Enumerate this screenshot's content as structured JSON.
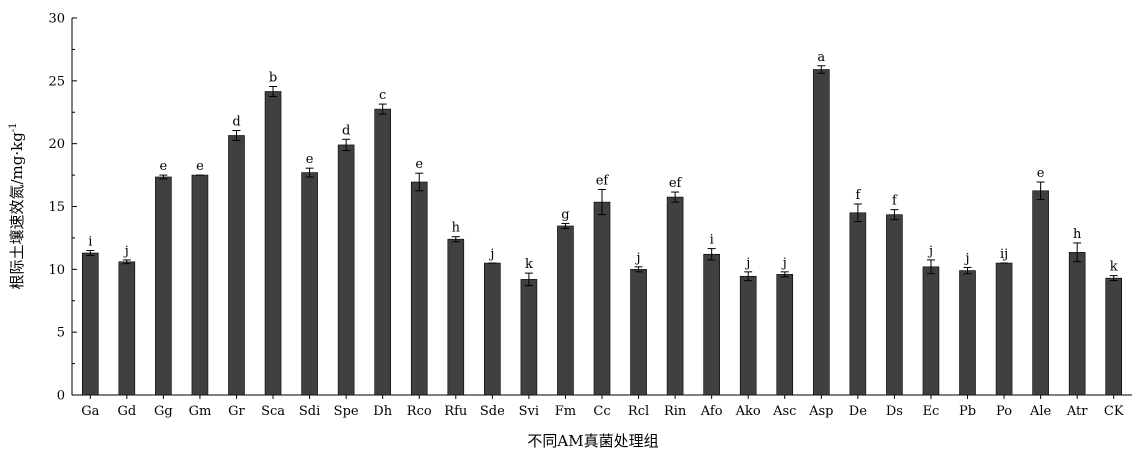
{
  "chart_data": {
    "type": "bar",
    "title": "",
    "xlabel": "不同AM真菌处理组",
    "ylabel": "根际土壤速效氮/mg·kg",
    "ylabel_sup": "-1",
    "ylim": [
      0,
      30
    ],
    "yticks": [
      0,
      5,
      10,
      15,
      20,
      25,
      30
    ],
    "grid": false,
    "legend": "none",
    "bar_color": "#404040",
    "categories": [
      "Ga",
      "Gd",
      "Gg",
      "Gm",
      "Gr",
      "Sca",
      "Sdi",
      "Spe",
      "Dh",
      "Rco",
      "Rfu",
      "Sde",
      "Svi",
      "Fm",
      "Cc",
      "Rcl",
      "Rin",
      "Afo",
      "Ako",
      "Asc",
      "Asp",
      "De",
      "Ds",
      "Ec",
      "Pb",
      "Po",
      "Ale",
      "Atr",
      "CK"
    ],
    "values": [
      11.3,
      10.6,
      17.35,
      17.5,
      20.65,
      24.15,
      17.7,
      19.9,
      22.75,
      16.95,
      12.4,
      10.5,
      9.2,
      13.45,
      15.35,
      10.0,
      15.75,
      11.2,
      9.45,
      9.6,
      25.9,
      14.5,
      14.35,
      10.2,
      9.9,
      10.5,
      16.25,
      11.35,
      9.3
    ],
    "errors": [
      0.2,
      0.15,
      0.15,
      0.0,
      0.4,
      0.4,
      0.35,
      0.45,
      0.4,
      0.7,
      0.2,
      0.0,
      0.5,
      0.2,
      1.0,
      0.2,
      0.4,
      0.45,
      0.35,
      0.2,
      0.3,
      0.7,
      0.4,
      0.55,
      0.25,
      0.0,
      0.7,
      0.75,
      0.2
    ],
    "significance": [
      "i",
      "j",
      "e",
      "e",
      "d",
      "b",
      "e",
      "d",
      "c",
      "e",
      "h",
      "j",
      "k",
      "g",
      "ef",
      "j",
      "ef",
      "i",
      "j",
      "j",
      "a",
      "f",
      "f",
      "j",
      "j",
      "ij",
      "e",
      "h",
      "k"
    ]
  }
}
